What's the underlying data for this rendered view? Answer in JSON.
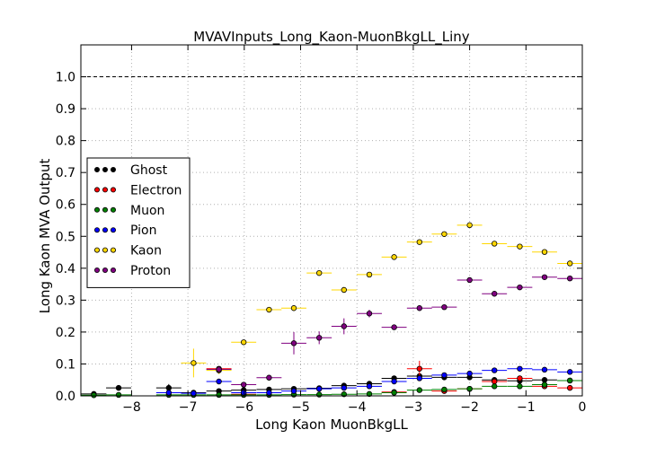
{
  "chart_data": {
    "type": "scatter",
    "title": "MVAVInputs_Long_Kaon-MuonBkgLL_Liny",
    "xlabel": "Long Kaon MuonBkgLL",
    "ylabel": "Long Kaon MVA Output",
    "xlim": [
      -8.9,
      0.0
    ],
    "ylim": [
      0.0,
      1.1
    ],
    "x_ticks": [
      -8,
      -7,
      -6,
      -5,
      -4,
      -3,
      -2,
      -1,
      0
    ],
    "y_ticks": [
      0.0,
      0.1,
      0.2,
      0.3,
      0.4,
      0.5,
      0.6,
      0.7,
      0.8,
      0.9,
      1.0
    ],
    "x_tick_labels": [
      "−8",
      "−7",
      "−6",
      "−5",
      "−4",
      "−3",
      "−2",
      "−1",
      "0"
    ],
    "y_tick_labels": [
      "0.0",
      "0.1",
      "0.2",
      "0.3",
      "0.4",
      "0.5",
      "0.6",
      "0.7",
      "0.8",
      "0.9",
      "1.0"
    ],
    "grid": true,
    "reference_line": {
      "y": 1.0,
      "style": "dashed",
      "color": "#000000"
    },
    "legend_position": "left-middle",
    "bin_half_width": 0.2225,
    "series": [
      {
        "name": "Ghost",
        "color": "#000000",
        "points": [
          {
            "x": -8.67,
            "y": 0.006,
            "err": 0.004
          },
          {
            "x": -8.23,
            "y": 0.025,
            "err": 0.006
          },
          {
            "x": -7.34,
            "y": 0.025,
            "err": 0.012
          },
          {
            "x": -6.9,
            "y": 0.01,
            "err": 0.004
          },
          {
            "x": -6.45,
            "y": 0.015,
            "err": 0.005
          },
          {
            "x": -6.01,
            "y": 0.018,
            "err": 0.004
          },
          {
            "x": -5.56,
            "y": 0.02,
            "err": 0.003
          },
          {
            "x": -5.12,
            "y": 0.022,
            "err": 0.003
          },
          {
            "x": -4.67,
            "y": 0.024,
            "err": 0.003
          },
          {
            "x": -4.23,
            "y": 0.032,
            "err": 0.003
          },
          {
            "x": -3.78,
            "y": 0.038,
            "err": 0.003
          },
          {
            "x": -3.34,
            "y": 0.055,
            "err": 0.003
          },
          {
            "x": -2.89,
            "y": 0.062,
            "err": 0.003
          },
          {
            "x": -2.45,
            "y": 0.058,
            "err": 0.003
          },
          {
            "x": -2.0,
            "y": 0.058,
            "err": 0.003
          },
          {
            "x": -1.56,
            "y": 0.05,
            "err": 0.003
          },
          {
            "x": -1.11,
            "y": 0.047,
            "err": 0.003
          },
          {
            "x": -0.67,
            "y": 0.05,
            "err": 0.003
          },
          {
            "x": -0.22,
            "y": 0.048,
            "err": 0.003
          }
        ]
      },
      {
        "name": "Electron",
        "color": "#ff0000",
        "points": [
          {
            "x": -6.45,
            "y": 0.085,
            "err": 0.008
          },
          {
            "x": -6.01,
            "y": 0.005,
            "err": 0.003
          },
          {
            "x": -3.34,
            "y": 0.012,
            "err": 0.004
          },
          {
            "x": -2.89,
            "y": 0.085,
            "err": 0.025
          },
          {
            "x": -2.45,
            "y": 0.015,
            "err": 0.004
          },
          {
            "x": -2.0,
            "y": 0.022,
            "err": 0.004
          },
          {
            "x": -1.56,
            "y": 0.045,
            "err": 0.005
          },
          {
            "x": -1.11,
            "y": 0.055,
            "err": 0.005
          },
          {
            "x": -0.67,
            "y": 0.03,
            "err": 0.004
          },
          {
            "x": -0.22,
            "y": 0.025,
            "err": 0.004
          }
        ]
      },
      {
        "name": "Muon",
        "color": "#008000",
        "points": [
          {
            "x": -8.67,
            "y": 0.002,
            "err": 0.001
          },
          {
            "x": -8.23,
            "y": 0.003,
            "err": 0.001
          },
          {
            "x": -7.34,
            "y": 0.003,
            "err": 0.001
          },
          {
            "x": -6.9,
            "y": 0.003,
            "err": 0.001
          },
          {
            "x": -6.45,
            "y": 0.003,
            "err": 0.001
          },
          {
            "x": -6.01,
            "y": 0.003,
            "err": 0.001
          },
          {
            "x": -5.56,
            "y": 0.003,
            "err": 0.001
          },
          {
            "x": -5.12,
            "y": 0.004,
            "err": 0.001
          },
          {
            "x": -4.67,
            "y": 0.004,
            "err": 0.001
          },
          {
            "x": -4.23,
            "y": 0.005,
            "err": 0.001
          },
          {
            "x": -3.78,
            "y": 0.006,
            "err": 0.001
          },
          {
            "x": -3.34,
            "y": 0.01,
            "err": 0.001
          },
          {
            "x": -2.89,
            "y": 0.018,
            "err": 0.001
          },
          {
            "x": -2.45,
            "y": 0.02,
            "err": 0.001
          },
          {
            "x": -2.0,
            "y": 0.022,
            "err": 0.001
          },
          {
            "x": -1.56,
            "y": 0.03,
            "err": 0.001
          },
          {
            "x": -1.11,
            "y": 0.03,
            "err": 0.001
          },
          {
            "x": -0.67,
            "y": 0.035,
            "err": 0.001
          },
          {
            "x": -0.22,
            "y": 0.048,
            "err": 0.001
          }
        ]
      },
      {
        "name": "Pion",
        "color": "#0000ff",
        "points": [
          {
            "x": -7.34,
            "y": 0.01,
            "err": 0.003
          },
          {
            "x": -6.9,
            "y": 0.008,
            "err": 0.003
          },
          {
            "x": -6.45,
            "y": 0.045,
            "err": 0.004
          },
          {
            "x": -6.01,
            "y": 0.01,
            "err": 0.002
          },
          {
            "x": -5.56,
            "y": 0.01,
            "err": 0.002
          },
          {
            "x": -5.12,
            "y": 0.015,
            "err": 0.002
          },
          {
            "x": -4.67,
            "y": 0.022,
            "err": 0.002
          },
          {
            "x": -4.23,
            "y": 0.025,
            "err": 0.002
          },
          {
            "x": -3.78,
            "y": 0.03,
            "err": 0.002
          },
          {
            "x": -3.34,
            "y": 0.045,
            "err": 0.002
          },
          {
            "x": -2.89,
            "y": 0.055,
            "err": 0.002
          },
          {
            "x": -2.45,
            "y": 0.065,
            "err": 0.002
          },
          {
            "x": -2.0,
            "y": 0.07,
            "err": 0.002
          },
          {
            "x": -1.56,
            "y": 0.08,
            "err": 0.002
          },
          {
            "x": -1.11,
            "y": 0.085,
            "err": 0.002
          },
          {
            "x": -0.67,
            "y": 0.082,
            "err": 0.002
          },
          {
            "x": -0.22,
            "y": 0.075,
            "err": 0.002
          }
        ]
      },
      {
        "name": "Kaon",
        "color": "#ffd700",
        "points": [
          {
            "x": -6.9,
            "y": 0.103,
            "err": 0.045
          },
          {
            "x": -6.45,
            "y": 0.08,
            "err": 0.012
          },
          {
            "x": -6.01,
            "y": 0.168,
            "err": 0.008
          },
          {
            "x": -5.56,
            "y": 0.27,
            "err": 0.006
          },
          {
            "x": -5.12,
            "y": 0.275,
            "err": 0.005
          },
          {
            "x": -4.67,
            "y": 0.385,
            "err": 0.005
          },
          {
            "x": -4.23,
            "y": 0.332,
            "err": 0.004
          },
          {
            "x": -3.78,
            "y": 0.38,
            "err": 0.004
          },
          {
            "x": -3.34,
            "y": 0.435,
            "err": 0.004
          },
          {
            "x": -2.89,
            "y": 0.482,
            "err": 0.004
          },
          {
            "x": -2.45,
            "y": 0.507,
            "err": 0.004
          },
          {
            "x": -2.0,
            "y": 0.535,
            "err": 0.004
          },
          {
            "x": -1.56,
            "y": 0.477,
            "err": 0.004
          },
          {
            "x": -1.11,
            "y": 0.468,
            "err": 0.004
          },
          {
            "x": -0.67,
            "y": 0.451,
            "err": 0.004
          },
          {
            "x": -0.22,
            "y": 0.415,
            "err": 0.004
          }
        ]
      },
      {
        "name": "Proton",
        "color": "#800080",
        "points": [
          {
            "x": -6.45,
            "y": 0.083,
            "err": 0.01
          },
          {
            "x": -6.01,
            "y": 0.035,
            "err": 0.006
          },
          {
            "x": -5.56,
            "y": 0.057,
            "err": 0.006
          },
          {
            "x": -5.12,
            "y": 0.165,
            "err": 0.035
          },
          {
            "x": -4.67,
            "y": 0.182,
            "err": 0.02
          },
          {
            "x": -4.23,
            "y": 0.218,
            "err": 0.025
          },
          {
            "x": -3.78,
            "y": 0.258,
            "err": 0.012
          },
          {
            "x": -3.34,
            "y": 0.215,
            "err": 0.006
          },
          {
            "x": -2.89,
            "y": 0.275,
            "err": 0.005
          },
          {
            "x": -2.45,
            "y": 0.278,
            "err": 0.005
          },
          {
            "x": -2.0,
            "y": 0.363,
            "err": 0.005
          },
          {
            "x": -1.56,
            "y": 0.32,
            "err": 0.005
          },
          {
            "x": -1.11,
            "y": 0.34,
            "err": 0.005
          },
          {
            "x": -0.67,
            "y": 0.372,
            "err": 0.005
          },
          {
            "x": -0.22,
            "y": 0.368,
            "err": 0.005
          }
        ]
      }
    ]
  }
}
